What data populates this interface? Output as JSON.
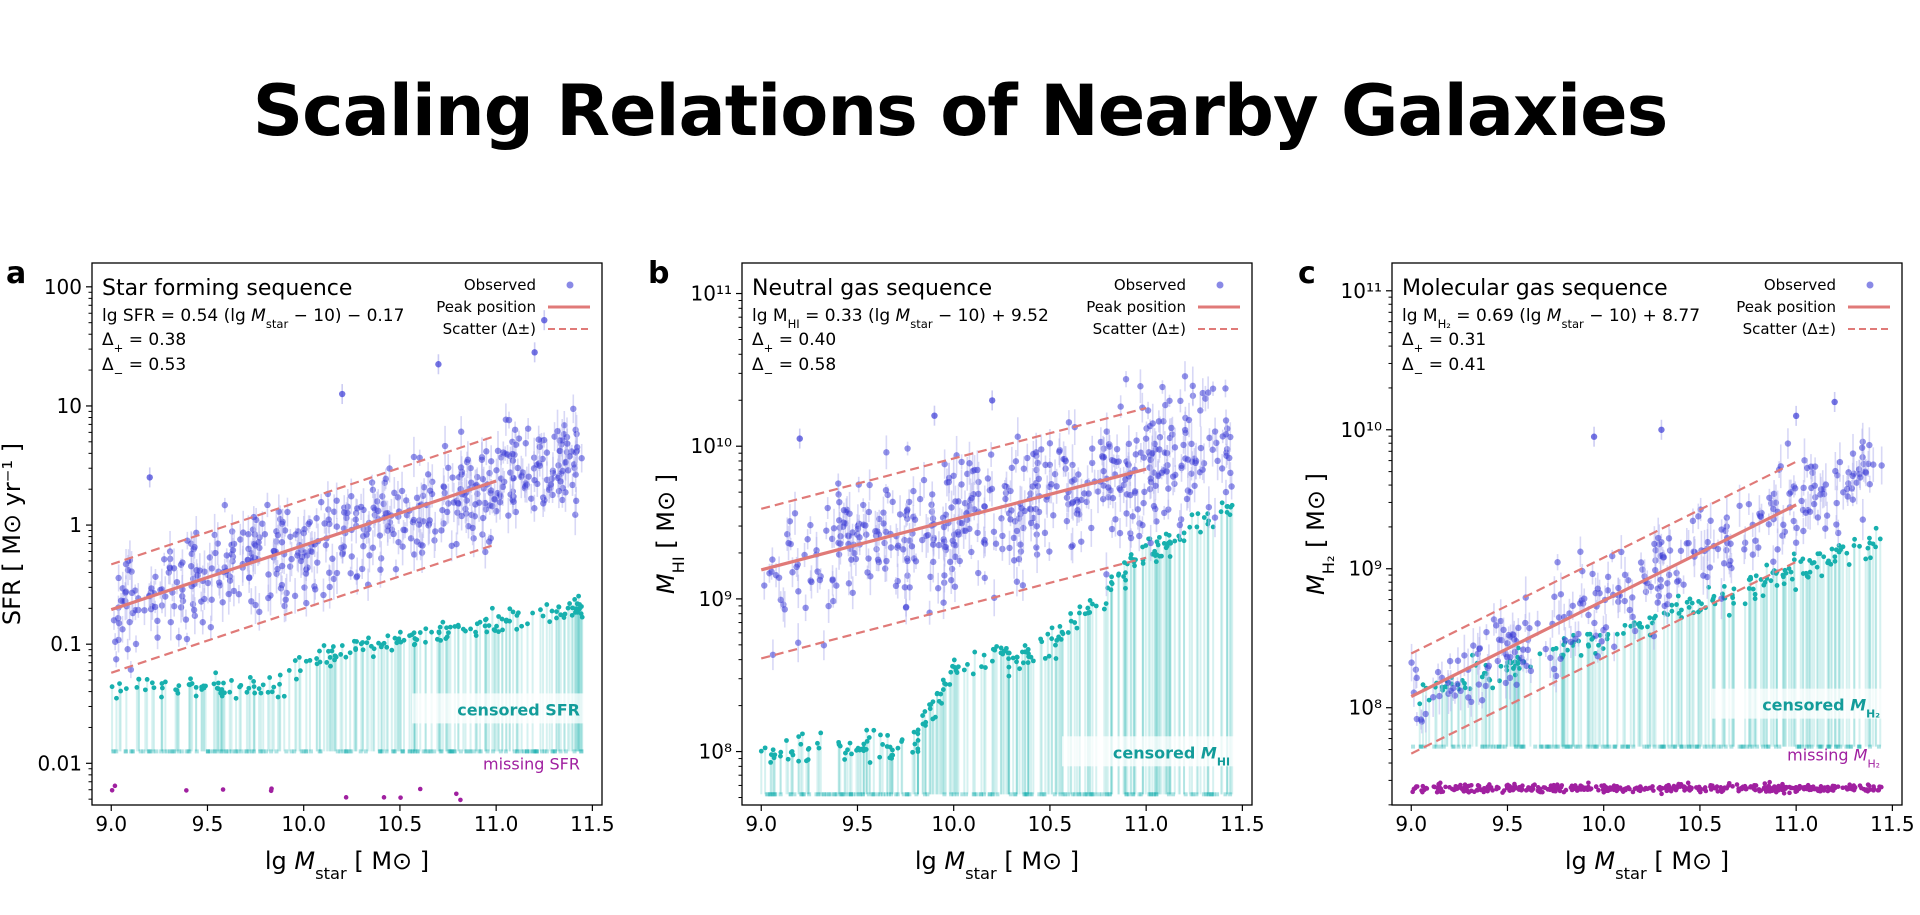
{
  "title": "Scaling Relations of Nearby Galaxies",
  "colors": {
    "observed": "#3a3ad6",
    "peak": "#e07a78",
    "censored": "#17b0ae",
    "missing": "#a020a0",
    "errbar": "#b8b8ee"
  },
  "chart_data": [
    {
      "type": "scatter",
      "panel_letter": "a",
      "title": "Star forming sequence",
      "equation": {
        "lhs": "lg SFR = 0.54 (lg ",
        "msym": "M",
        "msub": "star",
        "rhs": " − 10) − 0.17"
      },
      "delta_plus": {
        "sym": "Δ",
        "sub": "+",
        "value": " = 0.38"
      },
      "delta_minus": {
        "sym": "Δ",
        "sub": "−",
        "value": " = 0.53"
      },
      "legend": {
        "observed": "Observed",
        "peak": "Peak position",
        "scatter": "Scatter (Δ±)"
      },
      "xlabel": {
        "pre": "lg ",
        "sym": "M",
        "sub": "star",
        "unit": " [ M⊙ ]"
      },
      "ylabel": {
        "sym": "",
        "sub": "",
        "unit": "SFR [ M⊙ yr⁻¹ ]"
      },
      "xlim": [
        8.9,
        11.55
      ],
      "ylim_log10": [
        -2.35,
        2.2
      ],
      "xticks": [
        9.0,
        9.5,
        10.0,
        10.5,
        11.0,
        11.5
      ],
      "xtick_labels": [
        "9.0",
        "9.5",
        "10.0",
        "10.5",
        "11.0",
        "11.5"
      ],
      "yticks_log10": [
        -2,
        -1,
        0,
        1,
        2
      ],
      "ytick_labels": [
        "0.01",
        "0.1",
        "1",
        "10",
        "100"
      ],
      "peak_relation": {
        "slope": 0.54,
        "intercept": -0.17,
        "x_range": [
          9.0,
          11.0
        ]
      },
      "scatter_plus": 0.38,
      "scatter_minus": 0.53,
      "censored_label": {
        "text": "censored SFR",
        "sub": ""
      },
      "missing_label": {
        "text": "missing SFR",
        "sub": ""
      },
      "censored_floor_log10": -1.9,
      "missing_level_log10": -2.25,
      "observed_fraction": 0.72,
      "censored_trend": [
        [
          9.0,
          -1.35
        ],
        [
          9.9,
          -1.35
        ],
        [
          10.0,
          -1.12
        ],
        [
          11.45,
          -0.68
        ]
      ],
      "outliers": [
        [
          10.7,
          1.35
        ],
        [
          11.2,
          1.45
        ],
        [
          11.25,
          1.72
        ],
        [
          10.2,
          1.1
        ],
        [
          9.2,
          0.4
        ]
      ]
    },
    {
      "type": "scatter",
      "panel_letter": "b",
      "title": "Neutral gas sequence",
      "equation": {
        "lhs": "lg M",
        "lhs_sub": "HI",
        "mid": " = 0.33 (lg ",
        "msym": "M",
        "msub": "star",
        "rhs": " − 10) + 9.52"
      },
      "delta_plus": {
        "sym": "Δ",
        "sub": "+",
        "value": " = 0.40"
      },
      "delta_minus": {
        "sym": "Δ",
        "sub": "−",
        "value": " = 0.58"
      },
      "legend": {
        "observed": "Observed",
        "peak": "Peak position",
        "scatter": "Scatter (Δ±)"
      },
      "xlabel": {
        "pre": "lg ",
        "sym": "M",
        "sub": "star",
        "unit": " [ M⊙ ]"
      },
      "ylabel": {
        "sym": "M",
        "sub": "HI",
        "unit": " [ M⊙ ]"
      },
      "xlim": [
        8.9,
        11.55
      ],
      "ylim_log10": [
        7.65,
        11.2
      ],
      "xticks": [
        9.0,
        9.5,
        10.0,
        10.5,
        11.0,
        11.5
      ],
      "xtick_labels": [
        "9.0",
        "9.5",
        "10.0",
        "10.5",
        "11.0",
        "11.5"
      ],
      "yticks_log10": [
        8,
        9,
        10,
        11
      ],
      "ytick_labels": [
        "10⁸",
        "10⁹",
        "10¹⁰",
        "10¹¹"
      ],
      "peak_relation": {
        "slope": 0.33,
        "intercept": 9.52,
        "x_range": [
          9.0,
          11.0
        ]
      },
      "scatter_plus": 0.4,
      "scatter_minus": 0.58,
      "censored_label": {
        "text": "censored ",
        "sub": "M_HI"
      },
      "missing_label": null,
      "censored_floor_log10": 7.72,
      "missing_level_log10": null,
      "observed_fraction": 0.7,
      "censored_trend": [
        [
          9.0,
          8.0
        ],
        [
          9.8,
          8.05
        ],
        [
          10.0,
          8.55
        ],
        [
          10.5,
          8.7
        ],
        [
          11.0,
          9.3
        ],
        [
          11.45,
          9.6
        ]
      ],
      "outliers": [
        [
          9.9,
          10.2
        ],
        [
          9.2,
          10.05
        ],
        [
          10.2,
          10.3
        ]
      ]
    },
    {
      "type": "scatter",
      "panel_letter": "c",
      "title": "Molecular gas sequence",
      "equation": {
        "lhs": "lg M",
        "lhs_sub": "H2",
        "mid": " = 0.69 (lg ",
        "msym": "M",
        "msub": "star",
        "rhs": " − 10) + 8.77"
      },
      "delta_plus": {
        "sym": "Δ",
        "sub": "+",
        "value": " = 0.31"
      },
      "delta_minus": {
        "sym": "Δ",
        "sub": "−",
        "value": " = 0.41"
      },
      "legend": {
        "observed": "Observed",
        "peak": "Peak position",
        "scatter": "Scatter (Δ±)"
      },
      "xlabel": {
        "pre": "lg ",
        "sym": "M",
        "sub": "star",
        "unit": " [ M⊙ ]"
      },
      "ylabel": {
        "sym": "M",
        "sub": "H2",
        "unit": " [ M⊙ ]"
      },
      "xlim": [
        8.9,
        11.55
      ],
      "ylim_log10": [
        7.3,
        11.2
      ],
      "xticks": [
        9.0,
        9.5,
        10.0,
        10.5,
        11.0,
        11.5
      ],
      "xtick_labels": [
        "9.0",
        "9.5",
        "10.0",
        "10.5",
        "11.0",
        "11.5"
      ],
      "yticks_log10": [
        8,
        9,
        10,
        11
      ],
      "ytick_labels": [
        "10⁸",
        "10⁹",
        "10¹⁰",
        "10¹¹"
      ],
      "peak_relation": {
        "slope": 0.69,
        "intercept": 8.77,
        "x_range": [
          9.0,
          11.0
        ]
      },
      "scatter_plus": 0.31,
      "scatter_minus": 0.41,
      "censored_label": {
        "text": "censored ",
        "sub": "M_H2"
      },
      "missing_label": {
        "text": "missing ",
        "sub": "M_H2"
      },
      "censored_floor_log10": 7.72,
      "missing_level_log10": 7.42,
      "observed_fraction": 0.4,
      "censored_trend": [
        [
          9.0,
          8.1
        ],
        [
          10.0,
          8.5
        ],
        [
          11.45,
          9.2
        ]
      ],
      "outliers": [
        [
          9.95,
          9.95
        ],
        [
          10.3,
          10.0
        ],
        [
          11.0,
          10.1
        ],
        [
          11.2,
          10.2
        ]
      ]
    }
  ]
}
